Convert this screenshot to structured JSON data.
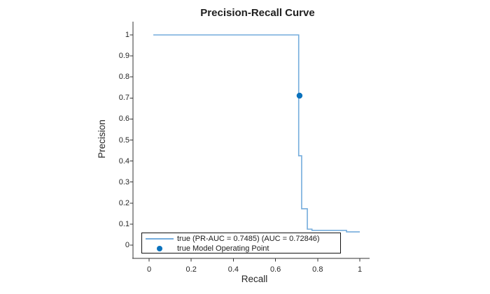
{
  "title": "Precision-Recall Curve",
  "axes": {
    "xlabel": "Recall",
    "ylabel": "Precision",
    "x_tick_labels": [
      "0",
      "0.2",
      "0.4",
      "0.6",
      "0.8",
      "1"
    ],
    "x_tick_values": [
      0,
      0.2,
      0.4,
      0.6,
      0.8,
      1
    ],
    "y_tick_labels": [
      "0",
      "0.1",
      "0.2",
      "0.3",
      "0.4",
      "0.5",
      "0.6",
      "0.7",
      "0.8",
      "0.9",
      "1"
    ],
    "y_tick_values": [
      0,
      0.1,
      0.2,
      0.3,
      0.4,
      0.5,
      0.6,
      0.7,
      0.8,
      0.9,
      1
    ]
  },
  "legend": {
    "position": "south-inside",
    "entries": [
      {
        "type": "line",
        "label": "true (PR-AUC = 0.7485) (AUC = 0.72846)"
      },
      {
        "type": "marker",
        "label": "true Model Operating Point"
      }
    ]
  },
  "colors": {
    "line": "#74ACDC",
    "marker": "#0B72BD",
    "axis": "#333333",
    "text": "#262626",
    "legend_border": "#111111"
  },
  "chart_data": {
    "type": "line",
    "title": "Precision-Recall Curve",
    "xlabel": "Recall",
    "ylabel": "Precision",
    "xlim": [
      -0.08,
      1.05
    ],
    "ylim": [
      -0.06,
      1.06
    ],
    "grid": false,
    "legend_position": "bottom-inside",
    "pr_auc": 0.7485,
    "auc": 0.72846,
    "series": [
      {
        "name": "true (PR-AUC = 0.7485) (AUC = 0.72846)",
        "step_points_recall_precision": [
          [
            0.02,
            1.0
          ],
          [
            0.71,
            1.0
          ],
          [
            0.71,
            0.425
          ],
          [
            0.724,
            0.425
          ],
          [
            0.724,
            0.173
          ],
          [
            0.751,
            0.173
          ],
          [
            0.751,
            0.076
          ],
          [
            0.773,
            0.076
          ],
          [
            0.773,
            0.07
          ],
          [
            0.937,
            0.07
          ],
          [
            0.937,
            0.063
          ],
          [
            1.0,
            0.063
          ]
        ]
      }
    ],
    "operating_point": {
      "name": "true Model Operating Point",
      "recall": 0.714,
      "precision": 0.711
    }
  }
}
